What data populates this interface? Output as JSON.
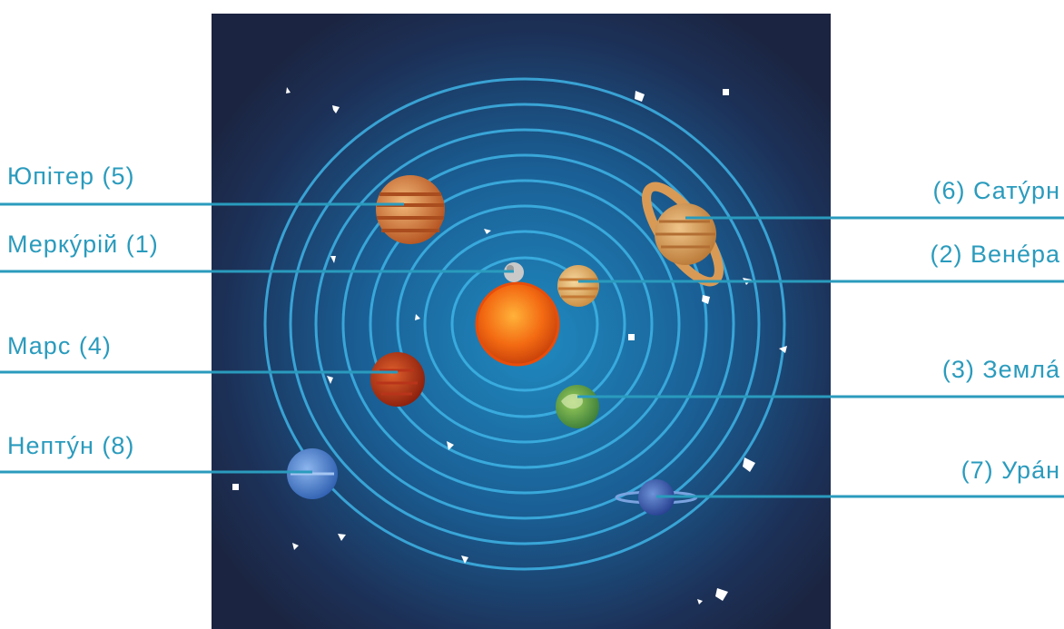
{
  "labels": {
    "left": [
      {
        "id": "jupiter",
        "text": "Юпітер (5)"
      },
      {
        "id": "mercury",
        "text": "Меркýрій (1)"
      },
      {
        "id": "mars",
        "text": "Марс (4)"
      },
      {
        "id": "neptune",
        "text": "Нептýн (8)"
      }
    ],
    "right": [
      {
        "id": "saturn",
        "text": "(6) Сатýрн"
      },
      {
        "id": "venus",
        "text": "(2) Венéра"
      },
      {
        "id": "earth",
        "text": "(3) Землá"
      },
      {
        "id": "uranus",
        "text": "(7) Урáн"
      }
    ]
  },
  "colors": {
    "label_text": "#2a9bbd",
    "leader_line": "#2a9bbd",
    "space_dark": "#1b2440",
    "space_glow": "#1f8ac0",
    "orbit": "#3fb4e6",
    "sun": "#f36a12"
  }
}
